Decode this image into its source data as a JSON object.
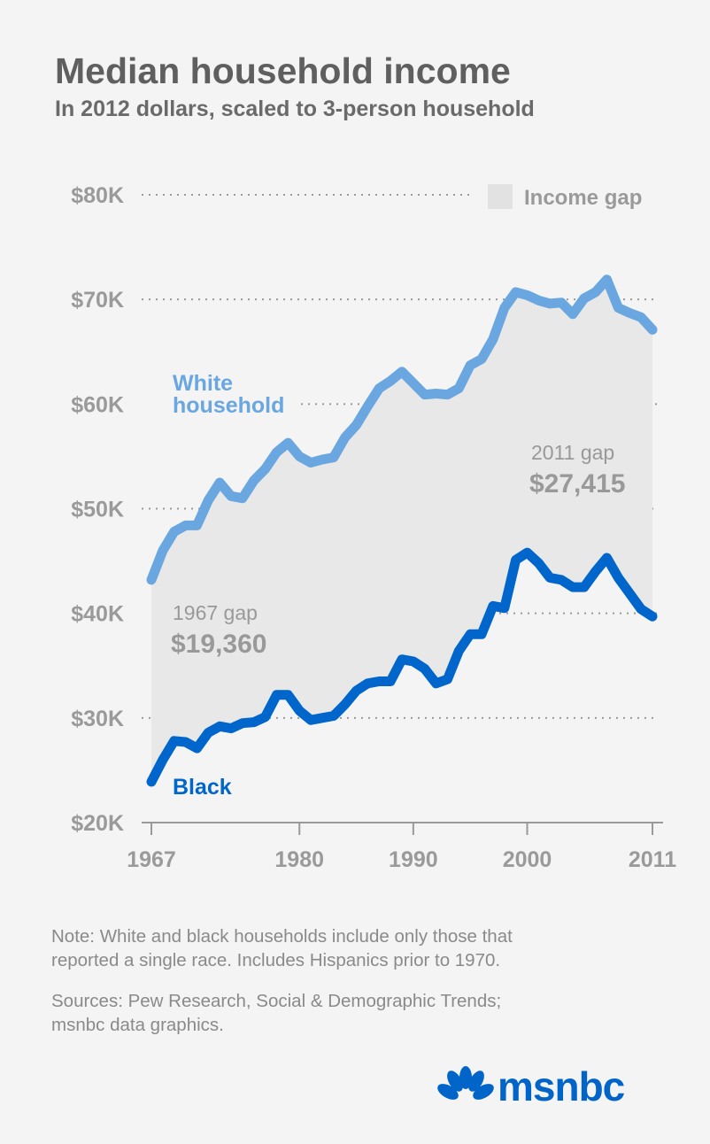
{
  "header": {
    "title": "Median household income",
    "subtitle": "In 2012 dollars, scaled to 3-person household"
  },
  "chart_data": {
    "type": "area",
    "title": "Median household income",
    "subtitle": "In 2012 dollars, scaled to 3-person household",
    "xlabel": "",
    "ylabel": "",
    "xlim": [
      1967,
      2011
    ],
    "ylim": [
      20,
      80
    ],
    "y_unit": "thousand dollars",
    "y_ticks": [
      {
        "value": 80,
        "label": "$80K"
      },
      {
        "value": 70,
        "label": "$70K"
      },
      {
        "value": 60,
        "label": "$60K"
      },
      {
        "value": 50,
        "label": "$50K"
      },
      {
        "value": 40,
        "label": "$40K"
      },
      {
        "value": 30,
        "label": "$30K"
      },
      {
        "value": 20,
        "label": "$20K"
      }
    ],
    "x_ticks": [
      {
        "value": 1967,
        "label": "1967"
      },
      {
        "value": 1980,
        "label": "1980"
      },
      {
        "value": 1990,
        "label": "1990"
      },
      {
        "value": 2000,
        "label": "2000"
      },
      {
        "value": 2011,
        "label": "2011"
      }
    ],
    "grid": true,
    "legend": {
      "label": "Income gap",
      "position": "top-right",
      "color": "#e6e6e6"
    },
    "x": [
      1967,
      1968,
      1969,
      1970,
      1971,
      1972,
      1973,
      1974,
      1975,
      1976,
      1977,
      1978,
      1979,
      1980,
      1981,
      1982,
      1983,
      1984,
      1985,
      1986,
      1987,
      1988,
      1989,
      1990,
      1991,
      1992,
      1993,
      1994,
      1995,
      1996,
      1997,
      1998,
      1999,
      2000,
      2001,
      2002,
      2003,
      2004,
      2005,
      2006,
      2007,
      2008,
      2009,
      2010,
      2011
    ],
    "series": [
      {
        "name": "White household",
        "color": "#6aa6e0",
        "values": [
          43.2,
          46.0,
          47.8,
          48.4,
          48.4,
          50.8,
          52.5,
          51.2,
          51.0,
          52.7,
          53.8,
          55.4,
          56.3,
          55.0,
          54.4,
          54.7,
          54.9,
          56.8,
          58.0,
          59.8,
          61.5,
          62.2,
          63.1,
          62.0,
          60.9,
          61.0,
          60.9,
          61.5,
          63.7,
          64.3,
          66.2,
          69.2,
          70.7,
          70.4,
          69.9,
          69.6,
          69.7,
          68.6,
          70.1,
          70.7,
          71.9,
          69.2,
          68.7,
          68.3,
          67.1
        ]
      },
      {
        "name": "Black",
        "color": "#0066cc",
        "values": [
          23.9,
          26.0,
          27.8,
          27.7,
          27.1,
          28.6,
          29.2,
          29.0,
          29.5,
          29.6,
          30.1,
          32.2,
          32.2,
          30.7,
          29.8,
          30.0,
          30.2,
          31.3,
          32.6,
          33.3,
          33.5,
          33.5,
          35.6,
          35.4,
          34.7,
          33.3,
          33.7,
          36.4,
          38.0,
          38.0,
          40.7,
          40.5,
          45.1,
          45.8,
          44.8,
          43.4,
          43.2,
          42.5,
          42.5,
          44.0,
          45.3,
          43.4,
          41.9,
          40.4,
          39.7
        ]
      }
    ],
    "series_labels": {
      "white_line1": "White",
      "white_line2": "household",
      "black": "Black"
    },
    "annotations": {
      "gap_1967_label": "1967 gap",
      "gap_1967_value": "$19,360",
      "gap_2011_label": "2011 gap",
      "gap_2011_value": "$27,415"
    }
  },
  "footer": {
    "note_line1": "Note: White and black households include only those that",
    "note_line2": "reported a single race. Includes Hispanics prior to 1970.",
    "source_line1": "Sources: Pew Research, Social & Demographic Trends;",
    "source_line2": "msnbc data graphics.",
    "logo_text": "msnbc",
    "logo_color": "#0064c8"
  }
}
